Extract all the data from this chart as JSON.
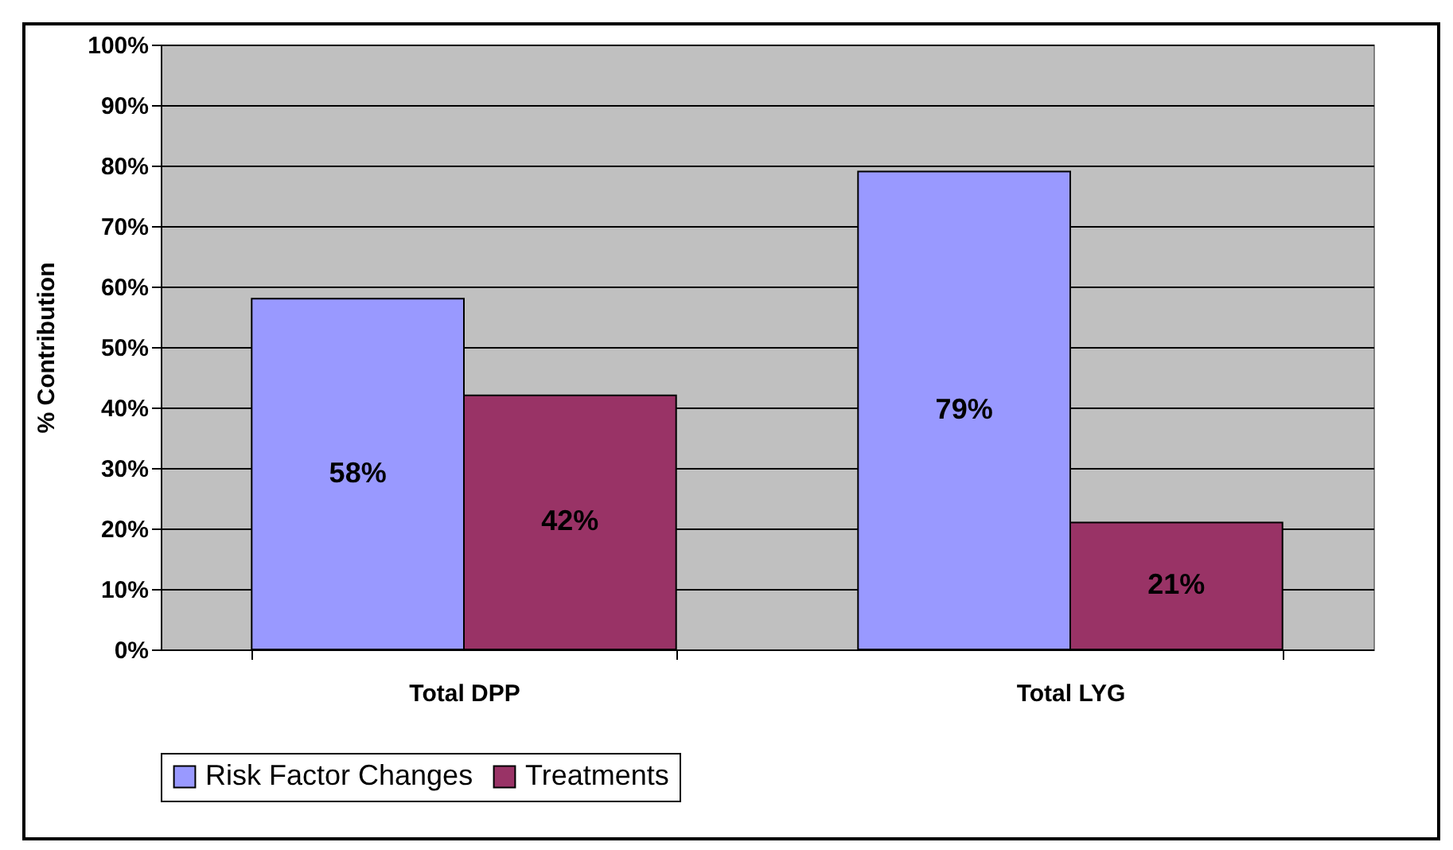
{
  "chart_data": {
    "type": "bar",
    "ylabel": "% Contribution",
    "categories": [
      "Total DPP",
      "Total LYG"
    ],
    "series": [
      {
        "name": "Risk Factor Changes",
        "color": "#9999ff",
        "values": [
          58,
          79
        ],
        "value_labels": [
          "58%",
          "79%"
        ]
      },
      {
        "name": "Treatments",
        "color": "#993366",
        "values": [
          42,
          21
        ],
        "value_labels": [
          "42%",
          "21%"
        ]
      }
    ],
    "ylim": [
      0,
      100
    ],
    "yticks": [
      {
        "value": 0,
        "label": "0%"
      },
      {
        "value": 10,
        "label": "10%"
      },
      {
        "value": 20,
        "label": "20%"
      },
      {
        "value": 30,
        "label": "30%"
      },
      {
        "value": 40,
        "label": "40%"
      },
      {
        "value": 50,
        "label": "50%"
      },
      {
        "value": 60,
        "label": "60%"
      },
      {
        "value": 70,
        "label": "70%"
      },
      {
        "value": 80,
        "label": "80%"
      },
      {
        "value": 90,
        "label": "90%"
      },
      {
        "value": 100,
        "label": "100%"
      }
    ],
    "grid": "y",
    "legend": "bottom"
  }
}
